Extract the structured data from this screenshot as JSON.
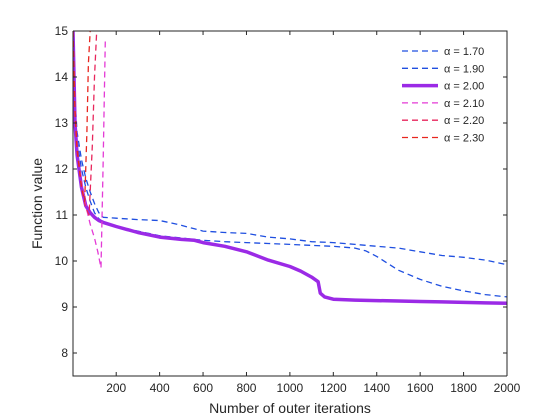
{
  "chart_data": {
    "type": "line",
    "xlabel": "Number of outer iterations",
    "ylabel": "Function value",
    "xlim": [
      1,
      2000
    ],
    "ylim": [
      7.5,
      15
    ],
    "xticks": [
      200,
      400,
      600,
      800,
      1000,
      1200,
      1400,
      1600,
      1800,
      2000
    ],
    "yticks": [
      8,
      9,
      10,
      11,
      12,
      13,
      14,
      15
    ],
    "grid": false,
    "legend_position": "top-right",
    "series": [
      {
        "name": "α = 1.70",
        "color": "#1f4fe0",
        "style": "dashed",
        "x": [
          1,
          10,
          20,
          40,
          60,
          80,
          100,
          120,
          140,
          200,
          300,
          400,
          480,
          560,
          600,
          700,
          800,
          900,
          1000,
          1100,
          1200,
          1300,
          1400,
          1500,
          1600,
          1700,
          1800,
          1900,
          2000
        ],
        "y": [
          15,
          13.5,
          12.8,
          12.2,
          11.8,
          11.5,
          11.25,
          11.05,
          10.95,
          10.93,
          10.9,
          10.88,
          10.8,
          10.7,
          10.65,
          10.62,
          10.6,
          10.52,
          10.48,
          10.42,
          10.4,
          10.36,
          10.32,
          10.28,
          10.2,
          10.12,
          10.08,
          10.02,
          9.92
        ]
      },
      {
        "name": "α = 1.90",
        "color": "#1f4fe0",
        "style": "dashed",
        "x": [
          1,
          10,
          20,
          40,
          60,
          80,
          100,
          120,
          140,
          200,
          300,
          400,
          500,
          600,
          700,
          800,
          900,
          1000,
          1100,
          1200,
          1300,
          1350,
          1400,
          1500,
          1600,
          1700,
          1800,
          1900,
          2000
        ],
        "y": [
          15,
          13.3,
          12.6,
          12,
          11.6,
          11.3,
          11.05,
          10.92,
          10.85,
          10.75,
          10.65,
          10.55,
          10.5,
          10.45,
          10.42,
          10.4,
          10.38,
          10.36,
          10.34,
          10.32,
          10.28,
          10.22,
          10.1,
          9.8,
          9.6,
          9.45,
          9.35,
          9.27,
          9.22
        ]
      },
      {
        "name": "α = 2.00",
        "color": "#9b2ae6",
        "style": "solid-thick",
        "x": [
          1,
          10,
          20,
          40,
          60,
          80,
          100,
          120,
          140,
          200,
          300,
          400,
          500,
          560,
          600,
          700,
          800,
          900,
          1000,
          1050,
          1100,
          1130,
          1140,
          1160,
          1200,
          1300,
          1400,
          1500,
          1600,
          1700,
          1800,
          1900,
          2000
        ],
        "y": [
          15,
          13,
          12.3,
          11.6,
          11.2,
          11.05,
          10.95,
          10.88,
          10.84,
          10.75,
          10.62,
          10.52,
          10.47,
          10.45,
          10.4,
          10.32,
          10.2,
          10.02,
          9.88,
          9.78,
          9.65,
          9.55,
          9.3,
          9.22,
          9.17,
          9.15,
          9.14,
          9.13,
          9.12,
          9.11,
          9.1,
          9.09,
          9.08
        ]
      },
      {
        "name": "α = 2.10",
        "color": "#e43ad6",
        "style": "dashed",
        "x": [
          1,
          10,
          20,
          40,
          60,
          80,
          100,
          115,
          130,
          140,
          150
        ],
        "y": [
          15,
          13.2,
          12.4,
          11.7,
          11.2,
          10.8,
          10.5,
          10.2,
          9.85,
          12.2,
          14.8
        ]
      },
      {
        "name": "α = 2.20",
        "color": "#e8265c",
        "style": "dashed",
        "x": [
          1,
          10,
          20,
          40,
          60,
          75,
          90,
          100,
          110
        ],
        "y": [
          15,
          13.3,
          12.5,
          11.6,
          11.15,
          11,
          12.5,
          14,
          15
        ]
      },
      {
        "name": "α = 2.30",
        "color": "#e8261f",
        "style": "dashed",
        "x": [
          1,
          10,
          20,
          40,
          55,
          65,
          72,
          80
        ],
        "y": [
          15,
          13.2,
          12.4,
          11.6,
          11.3,
          12.8,
          14.3,
          15
        ]
      }
    ]
  }
}
